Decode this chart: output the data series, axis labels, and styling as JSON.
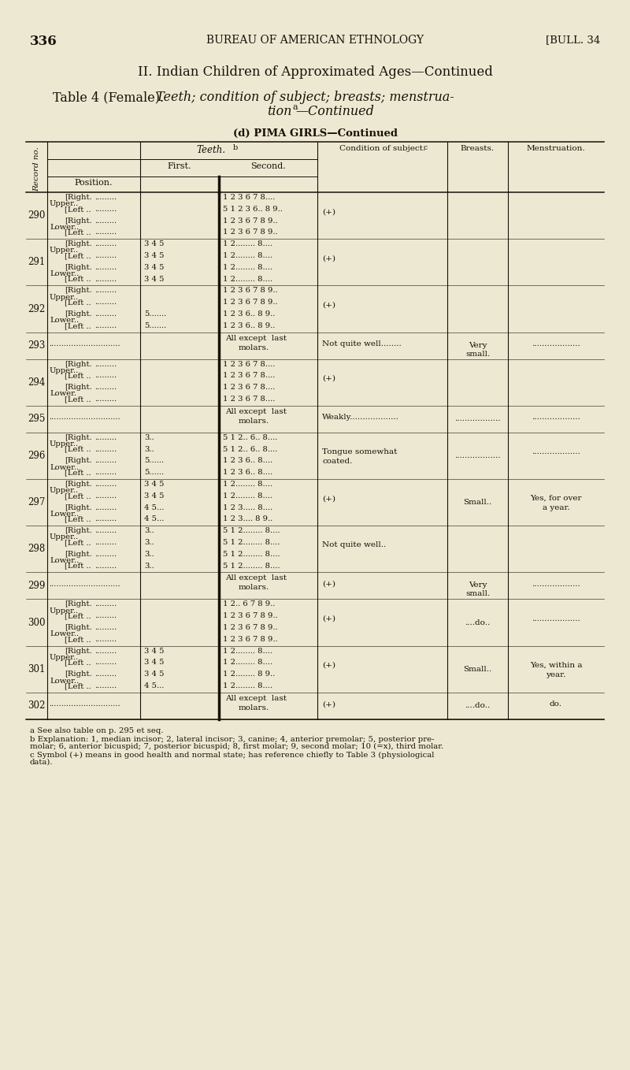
{
  "bg_color": "#ede8d2",
  "ink": "#1a1008",
  "page_num": "336",
  "hdr_center": "BUREAU OF AMERICAN ETHNOLOGY",
  "hdr_right": "[BULL. 34",
  "title1": "II. Indian Children of Approximated Ages—Continued",
  "t2a": "Table 4 (Female).",
  "t2b": " Teeth; condition of subject; breasts; menstrua-",
  "t3": "tion",
  "t3end": "—Continued",
  "subt": "(d) PIMA GIRLS—Continued",
  "fn_a": "a See also table on p. 295 et seq.",
  "fn_b1": "b Explanation: 1, median incisor; 2, lateral incisor; 3, canine; 4, anterior premolar; 5, posterior pre-",
  "fn_b2": "molar; 6, anterior bicuspid; 7, posterior bicuspid; 8, first molar; 9, second molar; 10 (=x), third molar.",
  "fn_c1": "c Symbol (+) means in good health and normal state; has reference chiefly to Table 3 (physiological",
  "fn_c2": "data).",
  "records": [
    {
      "id": "290",
      "type": "quad",
      "rows": [
        [
          "Upper..",
          "Right.",
          ".........",
          "1 2 3 6 7 8...."
        ],
        [
          "",
          "Left ..",
          ".........",
          "5 1 2 3 6.. 8 9.."
        ],
        [
          "Lower..",
          "Right.",
          ".........",
          "1 2 3 6 7 8 9.."
        ],
        [
          "",
          "Left ..",
          ".........",
          "1 2 3 6 7 8 9.."
        ]
      ],
      "cond": "(+)",
      "breast": "",
      "mens": ""
    },
    {
      "id": "291",
      "type": "quad",
      "rows": [
        [
          "Upper..",
          "Right.",
          "3 4 5",
          "1 2........ 8...."
        ],
        [
          "",
          "Left ..",
          "3 4 5",
          "1 2........ 8...."
        ],
        [
          "Lower..",
          "Right.",
          "3 4 5",
          "1 2........ 8...."
        ],
        [
          "",
          "Left ..",
          "3 4 5",
          "1 2........ 8...."
        ]
      ],
      "cond": "(+)",
      "breast": "",
      "mens": ""
    },
    {
      "id": "292",
      "type": "quad",
      "rows": [
        [
          "Upper..",
          "Right.",
          ".........",
          "1 2 3 6 7 8 9.."
        ],
        [
          "",
          "Left ..",
          ".........",
          "1 2 3 6 7 8 9.."
        ],
        [
          "Lower..",
          "Right.",
          "5.......",
          "1 2 3 6.. 8 9.."
        ],
        [
          "",
          "Left ..",
          "5.......",
          "1 2 3 6.. 8 9.."
        ]
      ],
      "cond": "(+)",
      "breast": "",
      "mens": ""
    },
    {
      "id": "293",
      "type": "single",
      "teeth1": "All except  last",
      "teeth2": "molars.",
      "cond": "Not quite well........",
      "breast": "Very\nsmall.",
      "mens": "..................."
    },
    {
      "id": "294",
      "type": "quad",
      "rows": [
        [
          "Upper..",
          "Right.",
          ".........",
          "1 2 3 6 7 8...."
        ],
        [
          "",
          "Left ..",
          ".........",
          "1 2 3 6 7 8...."
        ],
        [
          "Lower.",
          "Right.",
          ".........",
          "1 2 3 6 7 8...."
        ],
        [
          "",
          "Left ..",
          ".........",
          "1 2 3 6 7 8...."
        ]
      ],
      "cond": "(+)",
      "breast": "",
      "mens": ""
    },
    {
      "id": "295",
      "type": "single",
      "teeth1": "All except  last",
      "teeth2": "molars.",
      "cond": "Weakly...................",
      "breast": "..................",
      "mens": "..................."
    },
    {
      "id": "296",
      "type": "quad",
      "rows": [
        [
          "Upper..",
          "Right.",
          "3..",
          "5 1 2.. 6.. 8...."
        ],
        [
          "",
          "Left ..",
          "3..",
          "5 1 2.. 6.. 8...."
        ],
        [
          "Lower..",
          "Right.",
          "5......",
          "1 2 3 6.. 8...."
        ],
        [
          "",
          "Left ..",
          "5......",
          "1 2 3 6.. 8...."
        ]
      ],
      "cond": "Tongue somewhat\ncoated.",
      "breast": "..................",
      "mens": "..................."
    },
    {
      "id": "297",
      "type": "quad",
      "rows": [
        [
          "Upper..",
          "Right.",
          "3 4 5",
          "1 2........ 8...."
        ],
        [
          "",
          "Left ..",
          "3 4 5",
          "1 2........ 8...."
        ],
        [
          "Lower..",
          "Right.",
          "4 5...",
          "1 2 3..... 8...."
        ],
        [
          "",
          "Left ..",
          "4 5...",
          "1 2 3.... 8 9.."
        ]
      ],
      "cond": "(+)",
      "breast": "Small..",
      "mens": "Yes, for over\na year."
    },
    {
      "id": "298",
      "type": "quad",
      "rows": [
        [
          "Upper..",
          "Right.",
          "3..",
          "5 1 2........ 8...."
        ],
        [
          "",
          "Left ..",
          "3..",
          "5 1 2........ 8...."
        ],
        [
          "Lower..",
          "Right.",
          "3..",
          "5 1 2........ 8...."
        ],
        [
          "",
          "Left ..",
          "3..",
          "5 1 2........ 8...."
        ]
      ],
      "cond": "Not quite well..",
      "breast": "",
      "mens": ""
    },
    {
      "id": "299",
      "type": "single",
      "teeth1": "All except  last",
      "teeth2": "molars.",
      "cond": "(+)",
      "breast": "Very\nsmall.",
      "mens": "..................."
    },
    {
      "id": "300",
      "type": "quad",
      "rows": [
        [
          "Upper..",
          "Right.",
          ".........",
          "1 2.. 6 7 8 9.."
        ],
        [
          "",
          "Left ..",
          ".........",
          "1 2 3 6 7 8 9.."
        ],
        [
          "Lower..",
          "Right.",
          ".........",
          "1 2 3 6 7 8 9.."
        ],
        [
          "",
          "Left ..",
          ".........",
          "1 2 3 6 7 8 9.."
        ]
      ],
      "cond": "(+)",
      "breast": "....do..",
      "mens": "..................."
    },
    {
      "id": "301",
      "type": "quad",
      "rows": [
        [
          "Upper..",
          "Right.",
          "3 4 5",
          "1 2........ 8...."
        ],
        [
          "",
          "Left ..",
          "3 4 5",
          "1 2........ 8...."
        ],
        [
          "Lower..",
          "Right.",
          "3 4 5",
          "1 2........ 8 9.."
        ],
        [
          "",
          "Left ..",
          "4 5...",
          "1 2........ 8...."
        ]
      ],
      "cond": "(+)",
      "breast": "Small..",
      "mens": "Yes, within a\nyear."
    },
    {
      "id": "302",
      "type": "single",
      "teeth1": "All except  last",
      "teeth2": "molars.",
      "cond": "(+)",
      "breast": "....do..",
      "mens": "do."
    }
  ]
}
